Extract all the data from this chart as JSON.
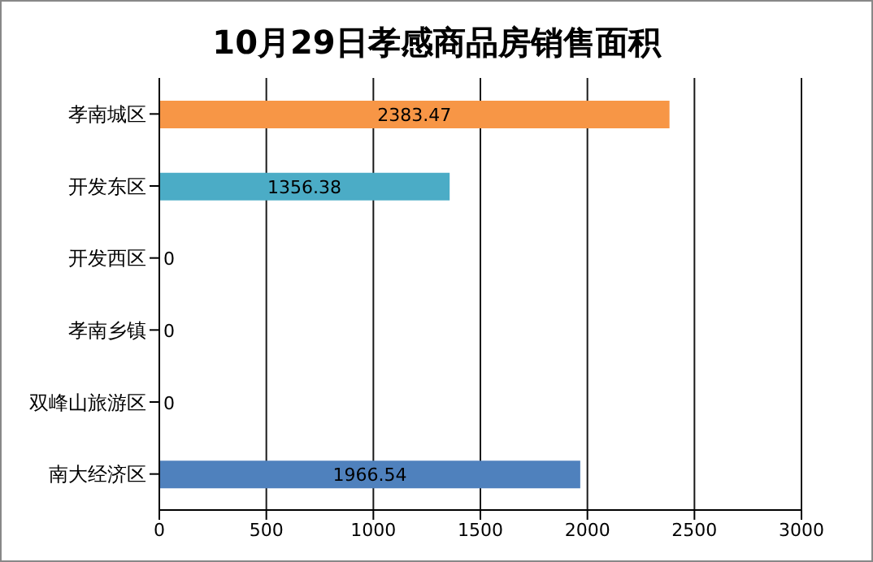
{
  "chart_data": {
    "type": "bar",
    "orientation": "horizontal",
    "title": "10月29日孝感商品房销售面积",
    "categories": [
      "孝南城区",
      "开发东区",
      "开发西区",
      "孝南乡镇",
      "双峰山旅游区",
      "南大经济区"
    ],
    "values": [
      2383.47,
      1356.38,
      0,
      0,
      0,
      1966.54
    ],
    "colors": [
      "#f79646",
      "#4bacc6",
      "#4f81bd",
      "#4f81bd",
      "#4f81bd",
      "#4f81bd"
    ],
    "xlim": [
      0,
      3000
    ],
    "xticks": [
      0,
      500,
      1000,
      1500,
      2000,
      2500,
      3000
    ],
    "grid": "x",
    "data_labels": true
  }
}
